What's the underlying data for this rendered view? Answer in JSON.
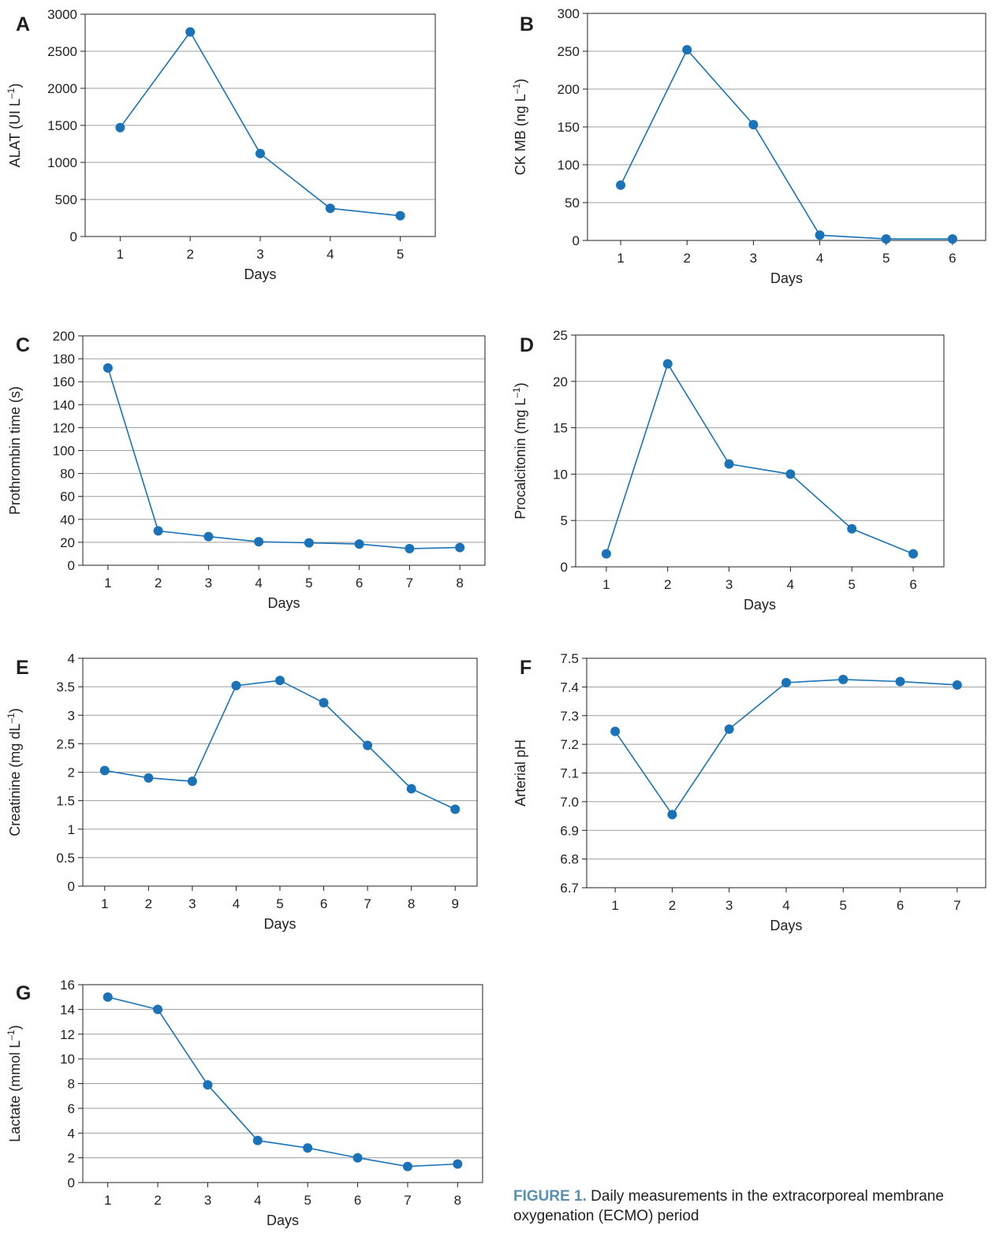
{
  "chart_data": [
    {
      "panel": "A",
      "type": "line",
      "ylabel": "ALAT (UI L",
      "ylabel_sup": "–1",
      "ylabel_end": ")",
      "xlabel": "Days",
      "x": [
        1,
        2,
        3,
        4,
        5
      ],
      "series": [
        {
          "values": [
            1470,
            2760,
            1120,
            380,
            280
          ]
        }
      ],
      "ylim": [
        0,
        3000
      ],
      "yticks": [
        0,
        500,
        1000,
        1500,
        2000,
        2500,
        3000
      ],
      "ytick_labels": [
        "0",
        "500",
        "1000",
        "1500",
        "2000",
        "2500",
        "3000"
      ],
      "grid": true
    },
    {
      "panel": "B",
      "type": "line",
      "ylabel": "CK MB (ng L",
      "ylabel_sup": "–1",
      "ylabel_end": ")",
      "xlabel": "Days",
      "x": [
        1,
        2,
        3,
        4,
        5,
        6
      ],
      "series": [
        {
          "values": [
            73,
            252,
            153,
            7,
            2,
            2
          ]
        }
      ],
      "ylim": [
        0,
        300
      ],
      "yticks": [
        0,
        50,
        100,
        150,
        200,
        250,
        300
      ],
      "ytick_labels": [
        "0",
        "50",
        "100",
        "150",
        "200",
        "250",
        "300"
      ],
      "grid": true
    },
    {
      "panel": "C",
      "type": "line",
      "ylabel": "Prothrombin time (s)",
      "ylabel_sup": "",
      "ylabel_end": "",
      "xlabel": "Days",
      "x": [
        1,
        2,
        3,
        4,
        5,
        6,
        7,
        8
      ],
      "series": [
        {
          "values": [
            172,
            30,
            25,
            20.5,
            19.5,
            18.5,
            14.5,
            15.5
          ]
        }
      ],
      "ylim": [
        0,
        200
      ],
      "yticks": [
        0,
        20,
        40,
        60,
        80,
        100,
        120,
        140,
        160,
        180,
        200
      ],
      "ytick_labels": [
        "0",
        "20",
        "40",
        "60",
        "80",
        "100",
        "120",
        "140",
        "160",
        "180",
        "200"
      ],
      "grid": true
    },
    {
      "panel": "D",
      "type": "line",
      "ylabel": "Procalcitonin (mg L",
      "ylabel_sup": "–1",
      "ylabel_end": ")",
      "xlabel": "Days",
      "x": [
        1,
        2,
        3,
        4,
        5,
        6
      ],
      "series": [
        {
          "values": [
            1.4,
            21.9,
            11.1,
            10.0,
            4.1,
            1.4
          ]
        }
      ],
      "ylim": [
        0,
        25
      ],
      "yticks": [
        0,
        5,
        10,
        15,
        20,
        25
      ],
      "ytick_labels": [
        "0",
        "5",
        "10",
        "15",
        "20",
        "25"
      ],
      "grid": true
    },
    {
      "panel": "E",
      "type": "line",
      "ylabel": "Creatinine (mg dL",
      "ylabel_sup": "–1",
      "ylabel_end": ")",
      "xlabel": "Days",
      "x": [
        1,
        2,
        3,
        4,
        5,
        6,
        7,
        8,
        9
      ],
      "series": [
        {
          "values": [
            2.03,
            1.9,
            1.84,
            3.52,
            3.61,
            3.22,
            2.47,
            1.71,
            1.35
          ]
        }
      ],
      "ylim": [
        0,
        4
      ],
      "yticks": [
        0,
        0.5,
        1,
        1.5,
        2,
        2.5,
        3,
        3.5,
        4
      ],
      "ytick_labels": [
        "0",
        "0.5",
        "1",
        "1.5",
        "2",
        "2.5",
        "3",
        "3.5",
        "4"
      ],
      "grid": true
    },
    {
      "panel": "F",
      "type": "line",
      "ylabel": "Arterial pH",
      "ylabel_sup": "",
      "ylabel_end": "",
      "xlabel": "Days",
      "x": [
        1,
        2,
        3,
        4,
        5,
        6,
        7
      ],
      "series": [
        {
          "values": [
            7.245,
            6.955,
            7.253,
            7.415,
            7.426,
            7.419,
            7.407
          ]
        }
      ],
      "ylim": [
        6.7,
        7.5
      ],
      "yticks": [
        6.7,
        6.8,
        6.9,
        7.0,
        7.1,
        7.2,
        7.3,
        7.4,
        7.5
      ],
      "ytick_labels": [
        "6.7",
        "6.8",
        "6.9",
        "7.0",
        "7.1",
        "7.2",
        "7.3",
        "7.4",
        "7.5"
      ],
      "grid": true
    },
    {
      "panel": "G",
      "type": "line",
      "ylabel": "Lactate (mmol L",
      "ylabel_sup": "–1",
      "ylabel_end": ")",
      "xlabel": "Days",
      "x": [
        1,
        2,
        3,
        4,
        5,
        6,
        7,
        8
      ],
      "series": [
        {
          "values": [
            15,
            14,
            7.9,
            3.4,
            2.8,
            2.0,
            1.3,
            1.5
          ]
        }
      ],
      "ylim": [
        0,
        16
      ],
      "yticks": [
        0,
        2,
        4,
        6,
        8,
        10,
        12,
        14,
        16
      ],
      "ytick_labels": [
        "0",
        "2",
        "4",
        "6",
        "8",
        "10",
        "12",
        "14",
        "16"
      ],
      "grid": true
    }
  ],
  "colors": {
    "series": "#1a73b8",
    "axis": "#231f20",
    "grid": "#9d9d9d",
    "caption_label": "#5b8fb0"
  },
  "caption": {
    "label": "FIGURE 1.",
    "text": " Daily measurements in the extracorporeal membrane oxygenation (ECMO) period"
  }
}
